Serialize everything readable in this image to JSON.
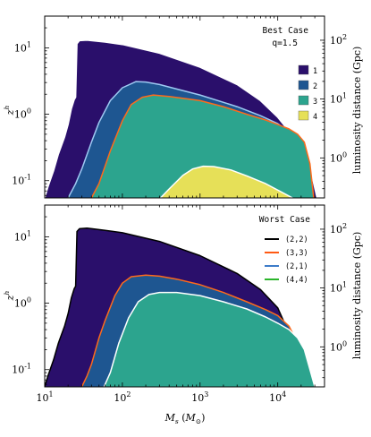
{
  "chart_data": [
    {
      "type": "area",
      "panel": "top",
      "title": "Best Case",
      "annotation": "q=1.5",
      "xlabel": "",
      "xscale": "log",
      "yscale": "log",
      "xlim": [
        10,
        40000
      ],
      "ylim": [
        0.055,
        30
      ],
      "ylabel": "z^h",
      "y2label": "luminosity distance (Gpc)",
      "x_ticks": [],
      "y_ticks": [
        "10^1",
        "10^0",
        "10^-1"
      ],
      "y2_ticks": [
        "10^2",
        "10^1",
        "10^0"
      ],
      "legend_position": "right",
      "legend_title": "",
      "series": [
        {
          "name": "1",
          "color": "#2a0f6b",
          "edge": "#ffffff",
          "x": [
            10,
            11,
            13,
            15,
            18,
            20,
            22,
            24,
            25,
            26,
            28,
            35,
            60,
            100,
            300,
            1000,
            3000,
            6000,
            10000,
            15000,
            22000,
            28000,
            32000
          ],
          "y": [
            0.055,
            0.08,
            0.14,
            0.25,
            0.45,
            0.7,
            1.2,
            1.65,
            1.8,
            11.5,
            12.8,
            13,
            12.2,
            11.2,
            8.3,
            5.1,
            2.8,
            1.6,
            0.9,
            0.5,
            0.25,
            0.11,
            0.055
          ]
        },
        {
          "name": "2",
          "color": "#1e5691",
          "edge": "#9ec9f2",
          "x": [
            20,
            25,
            30,
            40,
            50,
            70,
            100,
            150,
            200,
            300,
            500,
            1000,
            3000,
            6000,
            10000,
            14000,
            18000,
            22000,
            25000
          ],
          "y": [
            0.055,
            0.09,
            0.15,
            0.38,
            0.75,
            1.6,
            2.5,
            3.1,
            3.05,
            2.8,
            2.4,
            1.95,
            1.3,
            0.95,
            0.72,
            0.55,
            0.32,
            0.13,
            0.055
          ]
        },
        {
          "name": "3",
          "color": "#2ca48e",
          "edge": "#ff6a1a",
          "x": [
            40,
            50,
            70,
            100,
            130,
            180,
            250,
            400,
            700,
            1000,
            2000,
            4000,
            7000,
            10000,
            14000,
            18000,
            22000,
            26000,
            29000
          ],
          "y": [
            0.055,
            0.09,
            0.28,
            0.8,
            1.4,
            1.8,
            1.95,
            1.85,
            1.7,
            1.6,
            1.3,
            1.0,
            0.82,
            0.7,
            0.6,
            0.5,
            0.38,
            0.18,
            0.055
          ]
        },
        {
          "name": "4",
          "color": "#e6e058",
          "edge": "#ffffff",
          "x": [
            310,
            400,
            600,
            800,
            1100,
            1500,
            2500,
            4000,
            7000,
            11000,
            15500
          ],
          "y": [
            0.055,
            0.075,
            0.12,
            0.15,
            0.165,
            0.163,
            0.145,
            0.118,
            0.09,
            0.068,
            0.055
          ]
        }
      ]
    },
    {
      "type": "area",
      "panel": "bottom",
      "title": "Worst Case",
      "xlabel": "M_s (M_⊙)",
      "xscale": "log",
      "yscale": "log",
      "xlim": [
        10,
        40000
      ],
      "ylim": [
        0.055,
        30
      ],
      "ylabel": "z^h",
      "y2label": "luminosity distance (Gpc)",
      "x_ticks": [
        "10^1",
        "10^2",
        "10^3",
        "10^4"
      ],
      "y_ticks": [
        "10^1",
        "10^0",
        "10^-1"
      ],
      "y2_ticks": [
        "10^2",
        "10^1",
        "10^0"
      ],
      "legend_position": "right",
      "series": [
        {
          "name": "(2,2)",
          "color": "#2a0f6b",
          "edge": "#000000",
          "legend_color": "#000000",
          "x": [
            10,
            11,
            13,
            15,
            18,
            20,
            22,
            24,
            25,
            26,
            28,
            35,
            60,
            100,
            300,
            1000,
            3000,
            6000,
            10000,
            14000,
            17000,
            19000
          ],
          "y": [
            0.055,
            0.08,
            0.14,
            0.25,
            0.45,
            0.7,
            1.2,
            1.65,
            1.8,
            12,
            13.2,
            13.5,
            12.5,
            11.5,
            8.5,
            5.2,
            2.8,
            1.6,
            0.85,
            0.35,
            0.14,
            0.055
          ]
        },
        {
          "name": "(3,3)",
          "color": "#1e5691",
          "edge": "#ff6a1a",
          "legend_color": "#ff5a14",
          "x": [
            30,
            35,
            40,
            50,
            60,
            80,
            100,
            130,
            200,
            300,
            500,
            1000,
            2000,
            4000,
            7000,
            10000,
            14000,
            18000,
            22000,
            25000
          ],
          "y": [
            0.055,
            0.08,
            0.12,
            0.3,
            0.55,
            1.3,
            2.0,
            2.5,
            2.65,
            2.55,
            2.3,
            1.9,
            1.45,
            1.05,
            0.8,
            0.65,
            0.45,
            0.25,
            0.1,
            0.055
          ]
        },
        {
          "name": "(2,1)",
          "color": "#2ca48e",
          "edge": "#ffffff",
          "legend_color": "#3d7cc9",
          "x": [
            58,
            70,
            90,
            120,
            160,
            220,
            300,
            500,
            1000,
            2000,
            4000,
            7000,
            10000,
            14000,
            18000,
            22000,
            26000,
            30000
          ],
          "y": [
            0.055,
            0.09,
            0.25,
            0.6,
            1.05,
            1.35,
            1.45,
            1.45,
            1.3,
            1.05,
            0.82,
            0.62,
            0.5,
            0.4,
            0.3,
            0.2,
            0.1,
            0.055
          ]
        },
        {
          "name": "(4,4)",
          "color": "#2ca48e",
          "edge": "#33cc33",
          "legend_color": "#2bb52b",
          "x": [],
          "y": []
        }
      ]
    }
  ]
}
